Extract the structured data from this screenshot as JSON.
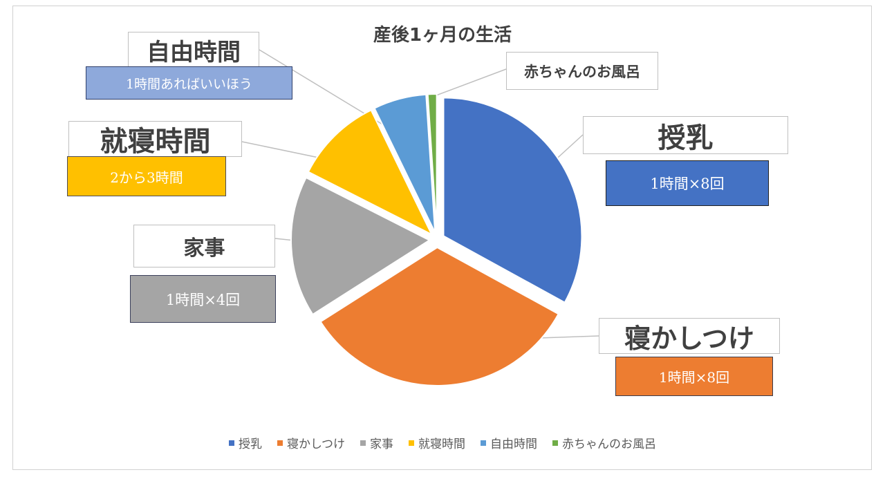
{
  "chart_data": {
    "type": "pie",
    "title": "産後1ヶ月の生活",
    "unit": "",
    "categories": [
      "授乳",
      "寝かしつけ",
      "家事",
      "就寝時間",
      "自由時間",
      "赤ちゃんのお風呂"
    ],
    "values": [
      8,
      8,
      4,
      2.5,
      1.5,
      0.25
    ],
    "colors": [
      "#4472C4",
      "#ED7D31",
      "#A5A5A5",
      "#FFC000",
      "#5B9BD5",
      "#70AD47"
    ],
    "labels": [
      {
        "name": "授乳",
        "detail": "1時間×8回"
      },
      {
        "name": "寝かしつけ",
        "detail": "1時間×8回"
      },
      {
        "name": "家事",
        "detail": "1時間×4回"
      },
      {
        "name": "就寝時間",
        "detail": "2から3時間"
      },
      {
        "name": "自由時間",
        "detail": "1時間あればいいほう"
      },
      {
        "name": "赤ちゃんのお風呂",
        "detail": ""
      }
    ],
    "legend": {
      "position": "bottom",
      "entries": [
        "授乳",
        "寝かしつけ",
        "家事",
        "就寝時間",
        "自由時間",
        "赤ちゃんのお風呂"
      ]
    }
  }
}
